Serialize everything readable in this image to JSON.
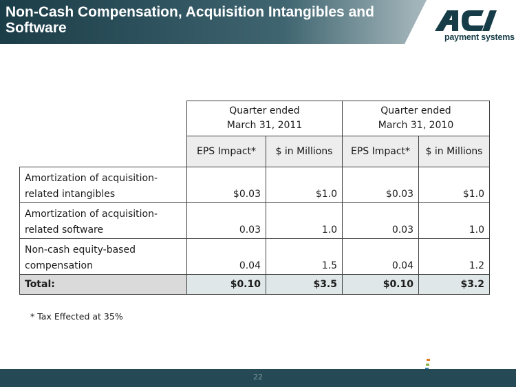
{
  "title": "Non-Cash Compensation, Acquisition Intangibles and Software",
  "logo": {
    "wordmark": "ACI",
    "tagline": "payment systems"
  },
  "table": {
    "periods": [
      {
        "line1": "Quarter ended",
        "line2": "March 31, 2011"
      },
      {
        "line1": "Quarter ended",
        "line2": "March 31, 2010"
      }
    ],
    "subheaders": [
      "EPS Impact*",
      "$ in Millions",
      "EPS Impact*",
      "$ in Millions"
    ],
    "rows": [
      {
        "label": "Amortization of acquisition-related intangibles",
        "values": [
          "$0.03",
          "$1.0",
          "$0.03",
          "$1.0"
        ]
      },
      {
        "label": "Amortization of acquisition-related software",
        "values": [
          "0.03",
          "1.0",
          "0.03",
          "1.0"
        ]
      },
      {
        "label": "Non-cash equity-based compensation",
        "values": [
          "0.04",
          "1.5",
          "0.04",
          "1.2"
        ]
      }
    ],
    "total": {
      "label": "Total:",
      "values": [
        "$0.10",
        "$3.5",
        "$0.10",
        "$3.2"
      ]
    }
  },
  "footnote": "* Tax Effected at 35%",
  "page_number": "22",
  "colors": {
    "header_dark": "#1b3d48",
    "header_light": "#b8c6ca",
    "footer": "#264a55",
    "logo": "#163c47",
    "total_fill": "#dfe7e9",
    "subheader_fill": "#ededed"
  }
}
